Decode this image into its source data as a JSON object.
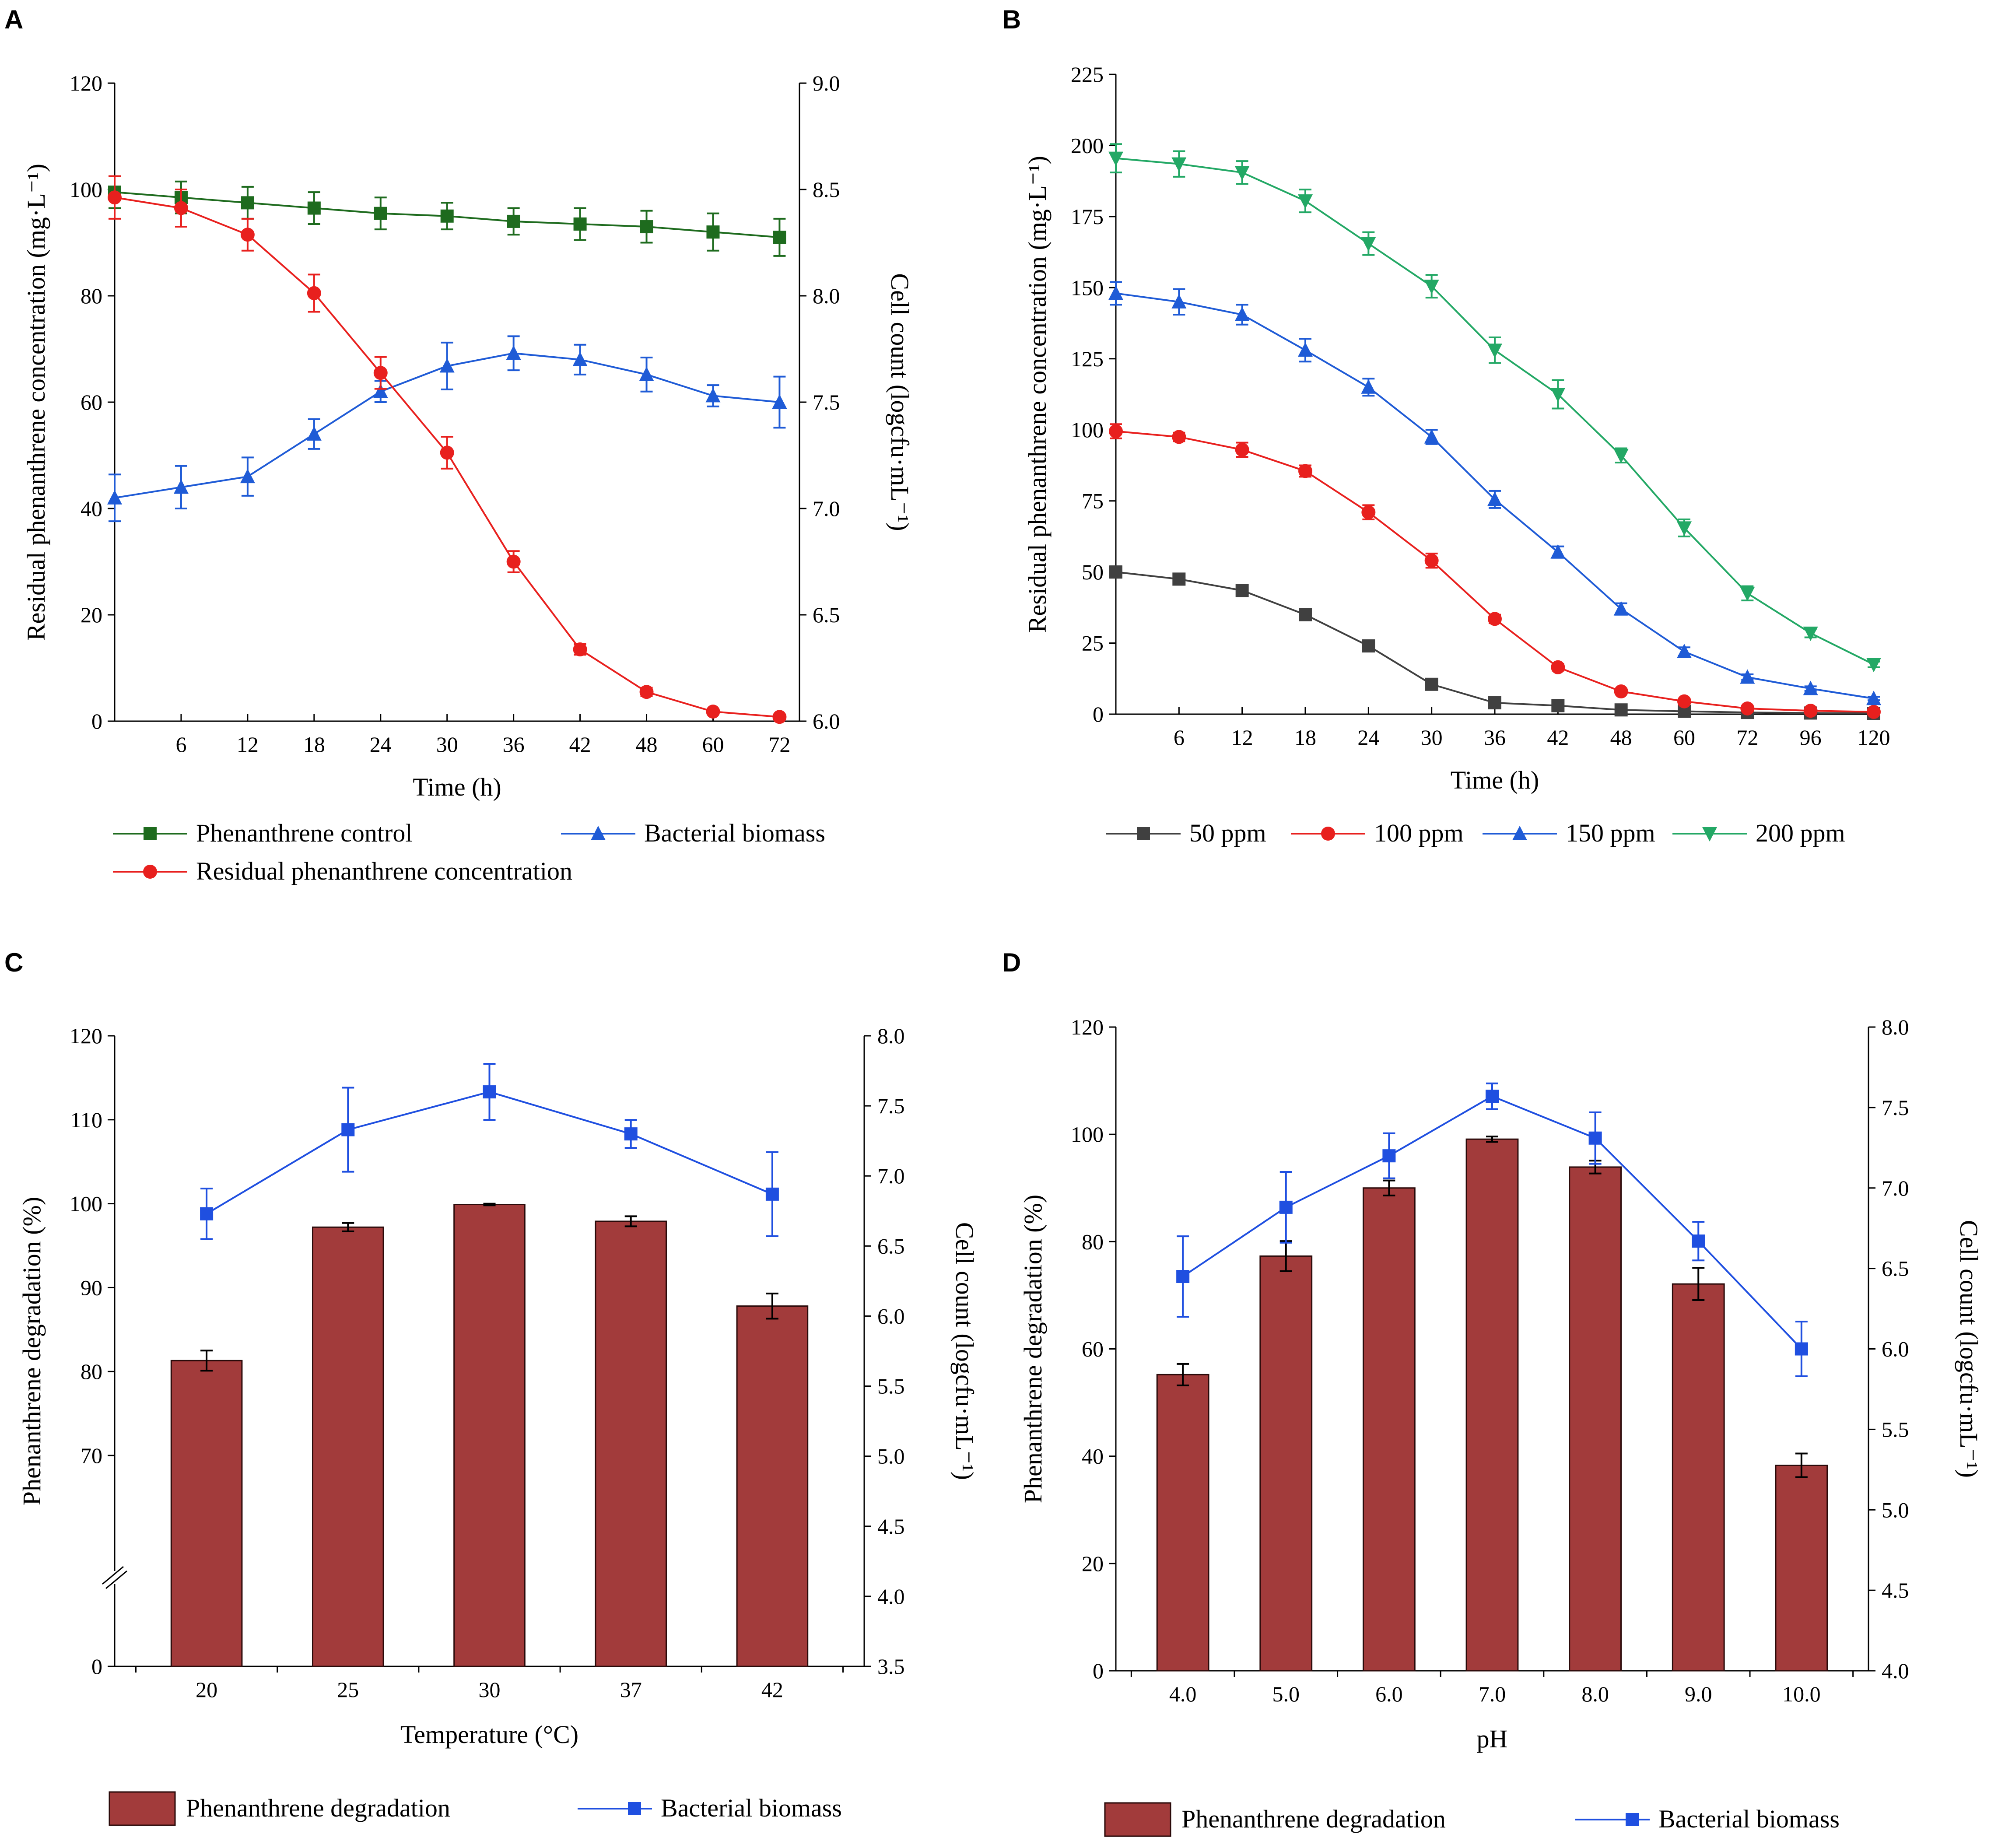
{
  "figure": {
    "panels": [
      "A",
      "B",
      "C",
      "D"
    ]
  },
  "colors": {
    "green": "#1e6b1e",
    "red": "#e8201e",
    "blue": "#1f5bd6",
    "black": "#404040",
    "teal": "#23a865",
    "bar_fill": "#a23b3b",
    "bar_edge": "#2a0a0a",
    "biomass_blue": "#1f4fe0"
  },
  "chart_data": [
    {
      "id": "A",
      "type": "line",
      "xlabel": "Time (h)",
      "ylabel_left": "Residual phenanthrene concentration (mg·L⁻¹)",
      "ylabel_right": "Cell count (logcfu·mL⁻¹)",
      "x_ticks": [
        "6",
        "12",
        "18",
        "24",
        "30",
        "36",
        "42",
        "48",
        "60",
        "72"
      ],
      "x_positions": [
        0,
        1,
        2,
        3,
        4,
        5,
        6,
        7,
        8,
        9,
        10
      ],
      "xlim": [
        0,
        10.3
      ],
      "ylim_left": [
        0,
        120
      ],
      "yticks_left": [
        0,
        20,
        40,
        60,
        80,
        100,
        120
      ],
      "ylim_right": [
        6.0,
        9.0
      ],
      "yticks_right": [
        "6.0",
        "6.5",
        "7.0",
        "7.5",
        "8.0",
        "8.5",
        "9.0"
      ],
      "series": [
        {
          "name": "Phenanthrene control",
          "axis": "left",
          "marker": "square",
          "color": "green",
          "values": [
            99.5,
            98.5,
            97.5,
            96.5,
            95.5,
            95,
            94,
            93.5,
            93,
            92,
            91
          ],
          "errors": [
            3,
            3,
            3,
            3,
            3,
            2.5,
            2.5,
            3,
            3,
            3.5,
            3.5
          ]
        },
        {
          "name": "Bacterial biomass",
          "axis": "right",
          "marker": "triangle",
          "color": "blue",
          "values": [
            7.05,
            7.1,
            7.15,
            7.35,
            7.55,
            7.67,
            7.73,
            7.7,
            7.63,
            7.53,
            7.5
          ],
          "errors": [
            0.11,
            0.1,
            0.09,
            0.07,
            0.05,
            0.11,
            0.08,
            0.07,
            0.08,
            0.05,
            0.12
          ]
        },
        {
          "name": "Residual phenanthrene concentration",
          "axis": "left",
          "marker": "circle",
          "color": "red",
          "values": [
            98.5,
            96.5,
            91.5,
            80.5,
            65.5,
            50.5,
            30,
            13.5,
            5.5,
            1.8,
            0.8
          ],
          "errors": [
            4,
            3.5,
            3,
            3.5,
            3,
            3,
            2,
            1,
            0.8,
            0.5,
            0.4
          ]
        }
      ],
      "legend_order": [
        "Phenanthrene control",
        "Bacterial biomass",
        "Residual phenanthrene concentration"
      ]
    },
    {
      "id": "B",
      "type": "line",
      "xlabel": "Time (h)",
      "ylabel_left": "Residual phenanthrene concentration (mg·L⁻¹)",
      "x_ticks": [
        "6",
        "12",
        "18",
        "24",
        "30",
        "36",
        "42",
        "48",
        "60",
        "72",
        "96",
        "120"
      ],
      "x_positions": [
        0,
        1,
        2,
        3,
        4,
        5,
        6,
        7,
        8,
        9,
        10,
        11,
        12
      ],
      "xlim": [
        0,
        12
      ],
      "ylim_left": [
        0,
        225
      ],
      "yticks_left": [
        0,
        25,
        50,
        75,
        100,
        125,
        150,
        175,
        200,
        225
      ],
      "series": [
        {
          "name": "50 ppm",
          "marker": "square",
          "color": "black",
          "values": [
            50,
            47.5,
            43.5,
            35,
            24,
            10.5,
            4,
            3,
            1.5,
            1,
            0.6,
            0.4,
            0.3
          ],
          "errors": [
            2,
            1.5,
            1.5,
            1.2,
            1.2,
            1,
            0.8,
            0.6,
            0.4,
            0.3,
            0.2,
            0.2,
            0.2
          ]
        },
        {
          "name": "100 ppm",
          "marker": "circle",
          "color": "red",
          "values": [
            99.5,
            97.5,
            93,
            85.5,
            71,
            54,
            33.5,
            16.5,
            8,
            4.5,
            2,
            1.2,
            0.8
          ],
          "errors": [
            2.5,
            1.5,
            2.5,
            2,
            2.5,
            2.5,
            1.5,
            1.2,
            1,
            0.6,
            0.4,
            0.3,
            0.2
          ]
        },
        {
          "name": "150 ppm",
          "marker": "triangle",
          "color": "blue",
          "values": [
            148,
            145,
            140.5,
            128,
            115,
            97.5,
            75.5,
            57,
            37,
            22,
            13,
            9,
            5.5
          ],
          "errors": [
            4,
            4.5,
            3.5,
            4,
            3,
            2.5,
            3,
            2,
            2,
            1.5,
            1,
            0.8,
            0.6
          ]
        },
        {
          "name": "200 ppm",
          "marker": "triangle-down",
          "color": "teal",
          "values": [
            195.5,
            193.5,
            190.5,
            180.5,
            165.5,
            150.5,
            128,
            112.5,
            91,
            65.5,
            42.5,
            28.5,
            17.5
          ],
          "errors": [
            5,
            4.5,
            4,
            4,
            4,
            4,
            4.5,
            5,
            2.5,
            3,
            2.5,
            1.5,
            1
          ]
        }
      ],
      "legend_order": [
        "50 ppm",
        "100 ppm",
        "150 ppm",
        "200 ppm"
      ]
    },
    {
      "id": "C",
      "type": "bar+line",
      "xlabel": "Temperature (°C)",
      "ylabel_left": "Phenanthrene degradation (%)",
      "ylabel_right": "Cell count (logcfu·mL⁻¹)",
      "categories": [
        "20",
        "25",
        "30",
        "37",
        "42"
      ],
      "yticks_left": [
        "0",
        "70",
        "80",
        "90",
        "100",
        "110",
        "120"
      ],
      "ylim_left_broken": [
        60,
        120
      ],
      "ylim_right": [
        3.5,
        8.0
      ],
      "yticks_right": [
        "3.5",
        "4.0",
        "4.5",
        "5.0",
        "5.5",
        "6.0",
        "6.5",
        "7.0",
        "7.5",
        "8.0"
      ],
      "series": [
        {
          "name": "Phenanthrene degradation",
          "kind": "bar",
          "axis": "left",
          "values": [
            81.3,
            97.2,
            99.9,
            97.9,
            87.8
          ],
          "errors": [
            1.2,
            0.5,
            0.1,
            0.6,
            1.5
          ]
        },
        {
          "name": "Bacterial biomass",
          "kind": "line",
          "axis": "right",
          "values": [
            6.73,
            7.33,
            7.6,
            7.3,
            6.87
          ],
          "errors": [
            0.18,
            0.3,
            0.2,
            0.1,
            0.3
          ]
        }
      ],
      "legend_order": [
        "Phenanthrene degradation",
        "Bacterial biomass"
      ]
    },
    {
      "id": "D",
      "type": "bar+line",
      "xlabel": "pH",
      "ylabel_left": "Phenanthrene degradation (%)",
      "ylabel_right": "Cell count (logcfu·mL⁻¹)",
      "categories": [
        "4.0",
        "5.0",
        "6.0",
        "7.0",
        "8.0",
        "9.0",
        "10.0"
      ],
      "ylim_left": [
        0,
        120
      ],
      "yticks_left": [
        "0",
        "20",
        "40",
        "60",
        "80",
        "100",
        "120"
      ],
      "ylim_right": [
        4.0,
        8.0
      ],
      "yticks_right": [
        "4.0",
        "4.5",
        "5.0",
        "5.5",
        "6.0",
        "6.5",
        "7.0",
        "7.5",
        "8.0"
      ],
      "series": [
        {
          "name": "Phenanthrene degradation",
          "kind": "bar",
          "axis": "left",
          "values": [
            55.2,
            77.3,
            90,
            99.1,
            93.9,
            72.1,
            38.3
          ],
          "errors": [
            2,
            2.8,
            1.4,
            0.5,
            1.2,
            3,
            2.2
          ]
        },
        {
          "name": "Bacterial biomass",
          "kind": "line",
          "axis": "right",
          "values": [
            6.45,
            6.88,
            7.2,
            7.57,
            7.31,
            6.67,
            6.0
          ],
          "errors": [
            0.25,
            0.22,
            0.14,
            0.08,
            0.16,
            0.12,
            0.17
          ]
        }
      ],
      "legend_order": [
        "Phenanthrene degradation",
        "Bacterial biomass"
      ]
    }
  ]
}
